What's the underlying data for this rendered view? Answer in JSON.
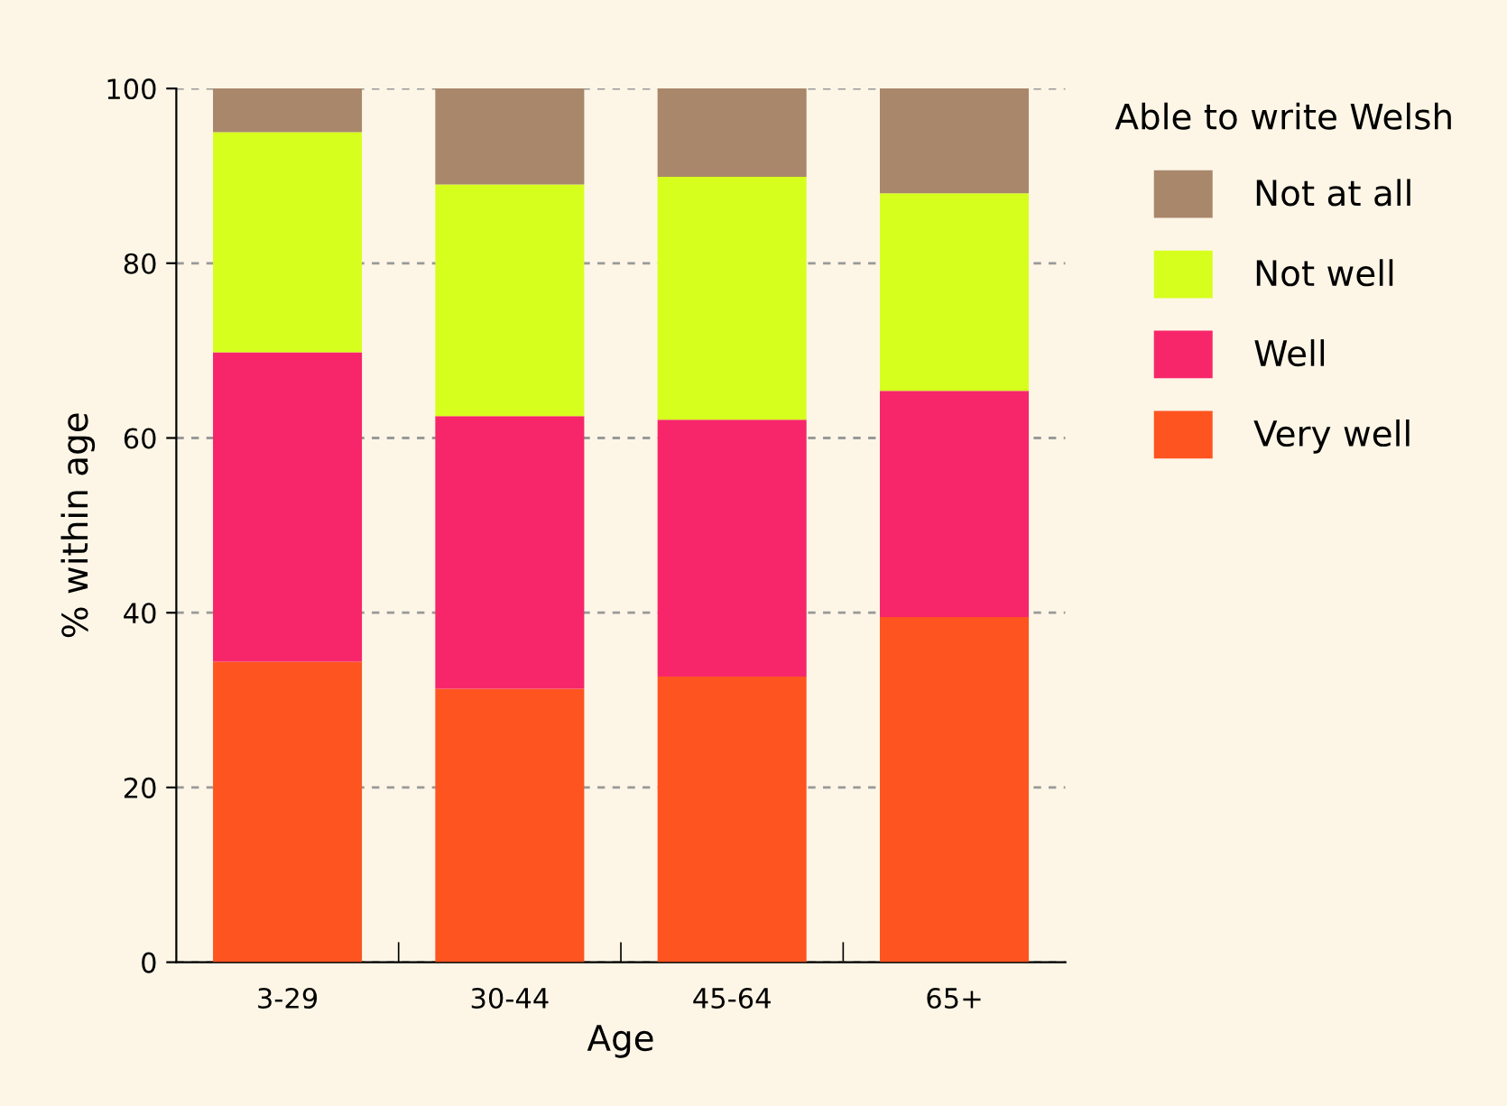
{
  "chart_data": {
    "type": "bar",
    "stacked": true,
    "xlabel": "Age",
    "ylabel": "% within age",
    "legend_title": "Able to write Welsh",
    "categories": [
      "3-29",
      "30-44",
      "45-64",
      "65+"
    ],
    "series": [
      {
        "name": "Very well",
        "color": "#fe5420",
        "values": [
          34.4,
          31.3,
          32.7,
          39.5
        ]
      },
      {
        "name": "Well",
        "color": "#f7266b",
        "values": [
          35.4,
          31.2,
          29.4,
          25.9
        ]
      },
      {
        "name": "Not well",
        "color": "#d6ff1e",
        "values": [
          25.2,
          26.5,
          27.8,
          22.6
        ]
      },
      {
        "name": "Not at all",
        "color": "#a9876b",
        "values": [
          5.0,
          11.0,
          10.1,
          12.0
        ]
      }
    ],
    "ylim": [
      0,
      100
    ],
    "yticks": [
      0,
      20,
      40,
      60,
      80,
      100
    ],
    "grid": "y",
    "legend": "right"
  }
}
